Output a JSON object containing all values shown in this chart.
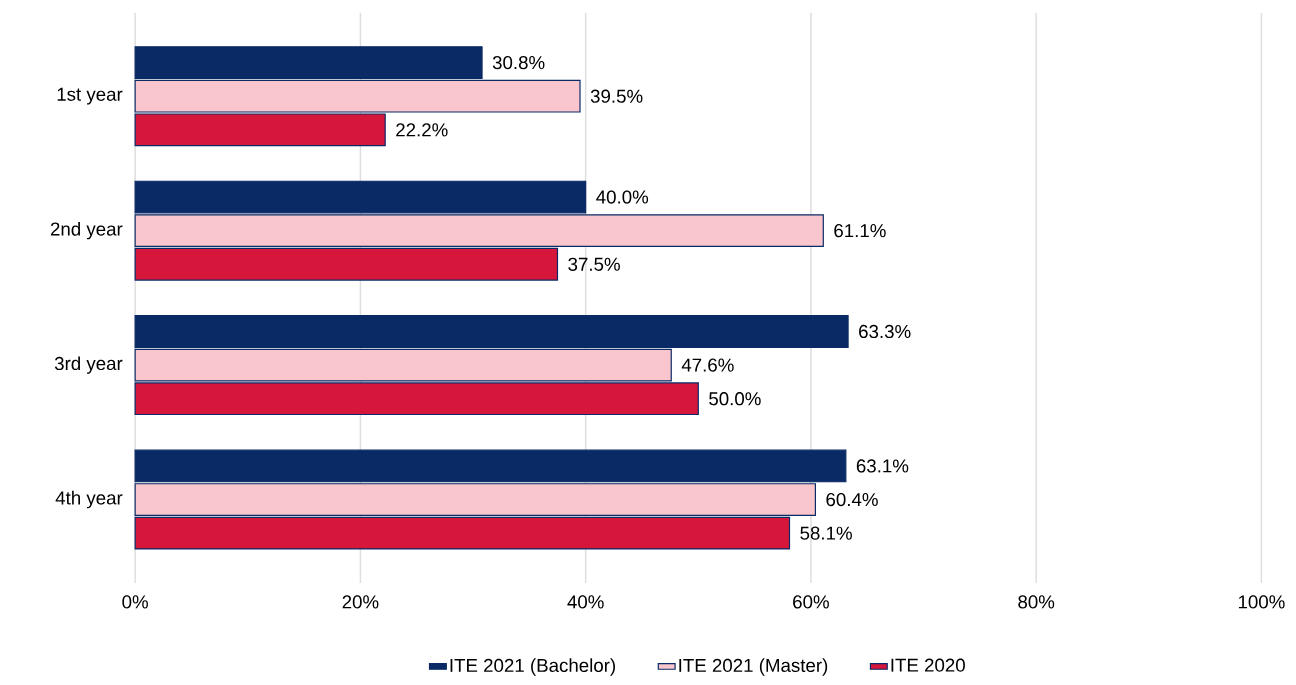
{
  "chart_data": {
    "type": "bar",
    "orientation": "horizontal",
    "categories": [
      "1st year",
      "2nd year",
      "3rd year",
      "4th year"
    ],
    "series": [
      {
        "name": "ITE 2021 (Bachelor)",
        "color": "#0a2a66",
        "values": [
          30.8,
          40.0,
          63.3,
          63.1
        ],
        "value_labels": [
          "30.8%",
          "40.0%",
          "63.3%",
          "63.1%"
        ]
      },
      {
        "name": "ITE 2021 (Master)",
        "color": "#f8c6cc",
        "values": [
          39.5,
          61.1,
          47.6,
          60.4
        ],
        "value_labels": [
          "39.5%",
          "61.1%",
          "47.6%",
          "60.4%"
        ]
      },
      {
        "name": "ITE 2020",
        "color": "#d7163c",
        "values": [
          22.2,
          37.5,
          50.0,
          58.1
        ],
        "value_labels": [
          "22.2%",
          "37.5%",
          "50.0%",
          "58.1%"
        ]
      }
    ],
    "xlim": [
      0,
      100
    ],
    "xticks": [
      {
        "value": 0,
        "label": "0%"
      },
      {
        "value": 20,
        "label": "20%"
      },
      {
        "value": 40,
        "label": "40%"
      },
      {
        "value": 60,
        "label": "60%"
      },
      {
        "value": 80,
        "label": "80%"
      },
      {
        "value": 100,
        "label": "100%"
      }
    ],
    "grid": "x",
    "legend": "bottom"
  }
}
